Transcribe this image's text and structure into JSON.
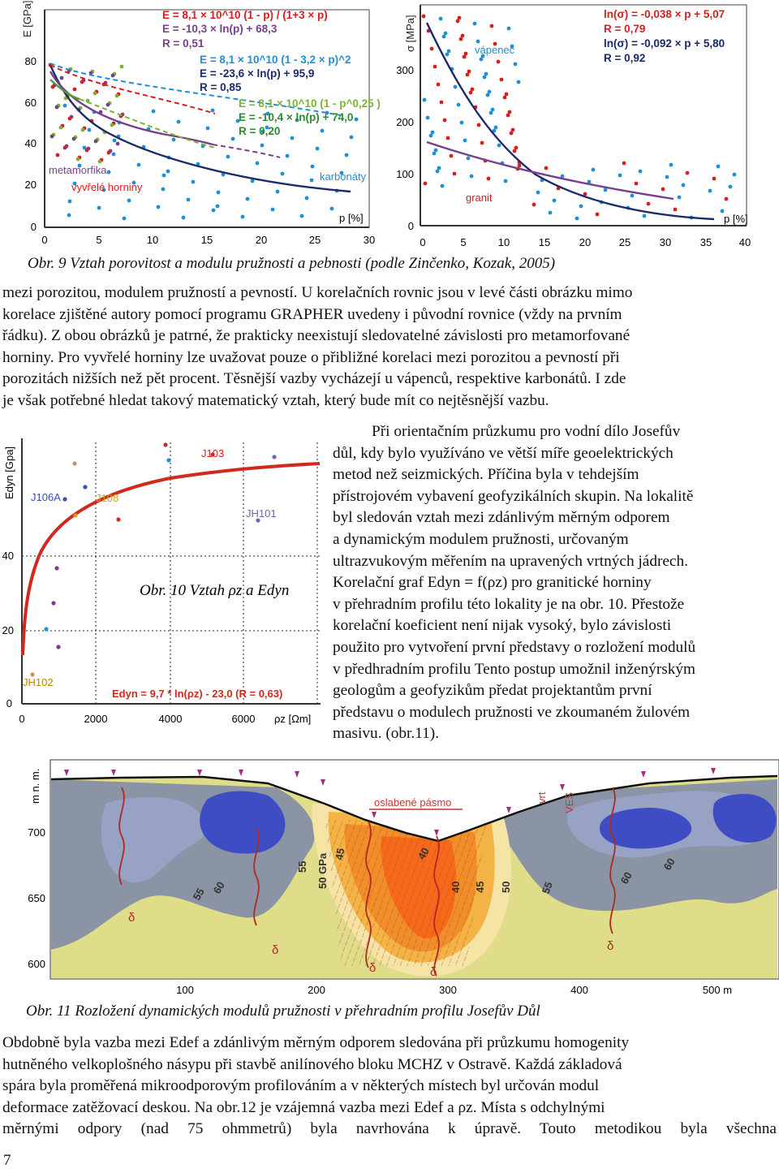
{
  "fig9": {
    "left": {
      "ylabel": "E [GPa]",
      "y_ticks": [
        "0",
        "20",
        "40",
        "60",
        "80"
      ],
      "x_ticks": [
        "0",
        "5",
        "10",
        "15",
        "20",
        "25",
        "30"
      ],
      "xlabel": "p [%]",
      "eq1": [
        "E = 8,1 × 10^10 (1 - p) / (1+3 × p)",
        "E = -10,3 × ln(p) + 68,3",
        "R = 0,51"
      ],
      "eq2": [
        "E = 8,1 × 10^10 (1 - 3,2 × p)^2",
        "E = -23,6 × ln(p) + 95,9",
        "R = 0,85"
      ],
      "eq3": [
        "E = 8,1 × 10^10 (1 - p^0,25 )",
        "E = -10,4 × ln(p) + 74,0",
        "R = 0,20"
      ],
      "label_metamorfika": "metamorfika",
      "label_vyvrele": "vyvřelé horniny",
      "label_karbonaty": "karbonáty",
      "colors": {
        "magmatic": "#7a3f8c",
        "carbonate": "#1f8fd6",
        "meta": "#7ab331",
        "red": "#d81e1e"
      }
    },
    "right": {
      "ylabel": "σ [MPa]",
      "y_ticks": [
        "0",
        "100",
        "200",
        "300"
      ],
      "x_ticks": [
        "0",
        "5",
        "10",
        "15",
        "20",
        "25",
        "30",
        "35",
        "40"
      ],
      "xlabel": "p [%]",
      "eq_red": [
        "ln(σ) = -0,038 × p + 5,07",
        "R = 0,79"
      ],
      "eq_blue": [
        "ln(σ) = -0,092 × p + 5,80",
        "R = 0,92"
      ],
      "label_vapenec": "vápenec",
      "label_granit": "granit"
    },
    "caption": "Obr. 9 Vztah porovitost a modulu pružnosti a pebnosti (podle Zinčenko, Kozak, 2005)"
  },
  "para1": [
    "mezi porozitou, modulem pružností a pevností. U korelačních rovnic jsou v levé části obrázku mimo",
    "korelace zjištěné autory pomocí programu GRAPHER uvedeny i původní rovnice (vždy na prvním",
    "řádku). Z obou obrázků je patrné, že prakticky neexistují sledovatelné závislosti pro metamorfované",
    "horniny. Pro vyvřelé horniny lze uvažovat pouze o přibližné korelaci mezi porozitou a pevností při",
    "porozitách nižších než pět procent. Těsnější vazby vycházejí u vápenců, respektive karbonátů. I zde",
    "je však potřebné hledat takový matematický vztah, který bude mít co nejtěsnější vazbu."
  ],
  "fig10": {
    "ylabel": "Edyn [Gpa]",
    "y_ticks": [
      "0",
      "20",
      "40"
    ],
    "x_ticks": [
      "0",
      "2000",
      "4000",
      "6000"
    ],
    "xlabel": "ρz [Ωm]",
    "labels": {
      "j106a": "J106A",
      "j108": "J108",
      "j103": "J103",
      "jh101": "JH101",
      "jh102": "JH102"
    },
    "caption": "Obr. 10 Vztah ρz a Edyn",
    "equation": "Edyn = 9,7 * ln(ρz) - 23,0 (R = 0,63)"
  },
  "para2": [
    "Při orientačním průzkumu pro vodní dílo Josefův",
    "důl, kdy bylo využíváno ve větší míře geoelektrických",
    "metod než seizmických. Příčina byla v tehdejším",
    "přístrojovém vybavení geofyzikálních skupin. Na lokalitě",
    "byl sledován vztah mezi zdánlivým měrným odporem",
    "a dynamickým modulem pružnosti, určovaným",
    "ultrazvukovým měřením na upravených vrtných jádrech.",
    "Korelační graf Edyn = f(ρz) pro granitické horniny",
    "v přehradním profilu této lokality je na obr. 10. Přestože",
    "korelační koeficient není nijak vysoký, bylo závislosti",
    "použito pro vytvoření první představy o rozložení modulů",
    "v předhradním profilu Tento postup umožnil inženýrským",
    "geologům a geofyzikům předat projektantům první",
    "představu o modulech pružnosti ve zkoumaném žulovém",
    "masivu. (obr.11)."
  ],
  "fig11": {
    "ylabel": "m n. m.",
    "y_ticks": [
      "700",
      "650",
      "600"
    ],
    "x_ticks": [
      "100",
      "200",
      "300",
      "400",
      "500 m"
    ],
    "label_oslabene": "oslabené pásmo",
    "label_vrt": "vrt",
    "label_ves": "VES",
    "contours": [
      "55",
      "60",
      "55",
      "50 GPa",
      "45",
      "40",
      "40",
      "45",
      "50",
      "55",
      "60",
      "60"
    ],
    "delta": "δ",
    "caption": "Obr. 11 Rozložení dynamických modulů pružnosti v přehradním profilu Josefův Důl"
  },
  "para3": [
    "Obdobně byla vazba mezi Edef a zdánlivým měrným odporem sledována při průzkumu homogenity",
    "hutněného velkoplošného násypu při stavbě anilínového bloku MCHZ v Ostravě. Každá základová",
    "spára byla proměřená mikroodporovým profilováním a v některých místech byl určován modul",
    "deformace zatěžovací deskou. Na obr.12 je vzájemná vazba mezi Edef a ρz. Místa s odchylnými",
    "měrnými odpory (nad 75 ohmmetrů) byla navrhována k úpravě. Touto metodikou byla všechna"
  ],
  "page_number": "7"
}
